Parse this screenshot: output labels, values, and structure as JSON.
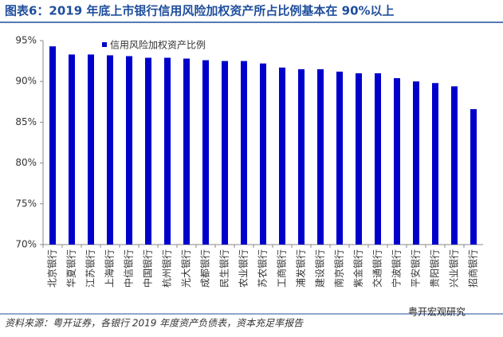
{
  "chart_data": {
    "type": "bar",
    "title": "图表6：2019 年底上市银行信用风险加权资产所占比例基本在 90%以上",
    "categories": [
      "北京银行",
      "华夏银行",
      "江苏银行",
      "上海银行",
      "中信银行",
      "中国银行",
      "杭州银行",
      "光大银行",
      "成都银行",
      "民生银行",
      "农业银行",
      "苏农银行",
      "工商银行",
      "浦发银行",
      "建设银行",
      "南京银行",
      "紫金银行",
      "交通银行",
      "宁波银行",
      "平安银行",
      "贵阳银行",
      "兴业银行",
      "招商银行"
    ],
    "series": [
      {
        "name": "信用风险加权资产比例",
        "color": "#0000cc",
        "values": [
          94.3,
          93.3,
          93.3,
          93.2,
          93.1,
          92.9,
          92.9,
          92.8,
          92.6,
          92.5,
          92.5,
          92.2,
          91.7,
          91.5,
          91.5,
          91.2,
          91.0,
          91.0,
          90.4,
          90.0,
          89.8,
          89.4,
          86.6
        ]
      }
    ],
    "ylim": [
      70,
      95
    ],
    "yticks": [
      {
        "value": 70,
        "label": "70%"
      },
      {
        "value": 75,
        "label": "75%"
      },
      {
        "value": 80,
        "label": "80%"
      },
      {
        "value": 85,
        "label": "85%"
      },
      {
        "value": 90,
        "label": "90%"
      },
      {
        "value": 95,
        "label": "95%"
      }
    ],
    "grid": false,
    "source": "资料来源：粤开证券，各银行 2019 年度资产负债表，资本充足率报告",
    "watermark": "粤开宏观研究"
  }
}
